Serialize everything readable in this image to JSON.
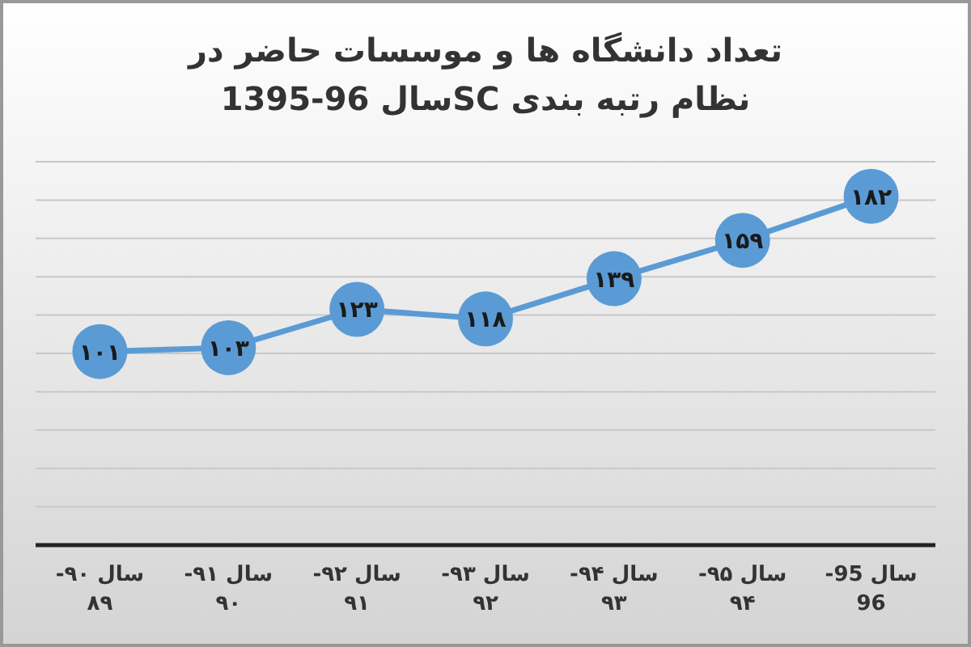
{
  "chart_data": {
    "type": "line",
    "title": "تعداد دانشگاه ها و موسسات حاضر در\nنظام رتبه بندی SCسال 96-1395",
    "categories": [
      "سال ۹۰-۸۹",
      "سال ۹۱-۹۰",
      "سال ۹۲-۹۱",
      "سال ۹۳-۹۲",
      "سال ۹۴-۹۳",
      "سال ۹۵-۹۴",
      "سال 95-96"
    ],
    "series": [
      {
        "color": "#5b9bd5",
        "values": [
          101,
          103,
          123,
          118,
          139,
          159,
          182
        ],
        "value_labels": [
          "۱۰۱",
          "۱۰۳",
          "۱۲۳",
          "۱۱۸",
          "۱۳۹",
          "۱۵۹",
          "۱۸۲"
        ]
      }
    ],
    "ylim": [
      0,
      200
    ],
    "yticks": [
      {
        "value": 0,
        "label": null
      },
      {
        "value": 20,
        "label": null
      },
      {
        "value": 40,
        "label": null
      },
      {
        "value": 60,
        "label": null
      },
      {
        "value": 80,
        "label": null
      },
      {
        "value": 100,
        "label": null
      },
      {
        "value": 120,
        "label": null
      },
      {
        "value": 140,
        "label": null
      },
      {
        "value": 160,
        "label": null
      },
      {
        "value": 180,
        "label": null
      },
      {
        "value": 200,
        "label": null
      }
    ],
    "grid": "y",
    "tick_labels": "x",
    "marker": "circle",
    "line_style": "solid"
  }
}
